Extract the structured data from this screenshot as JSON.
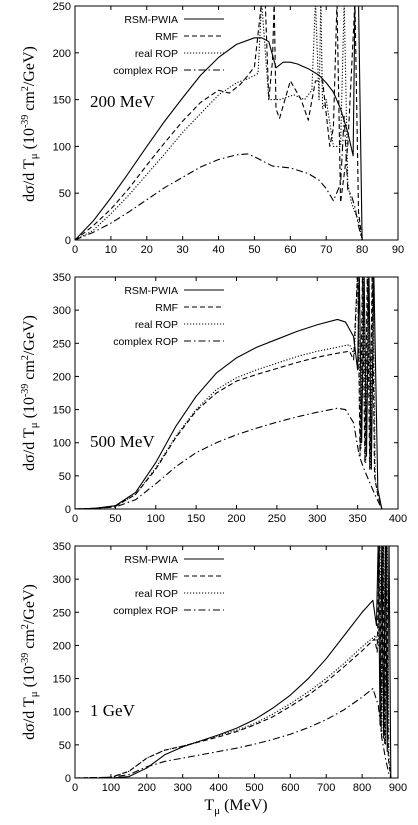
{
  "figure": {
    "x_axis_label": "T_μ (MeV)",
    "y_axis_label": "dσ/d T_μ (10^-39 cm^2/GeV)"
  },
  "styles": {
    "RSM-PWIA": {
      "color": "#000000",
      "dash": ""
    },
    "RMF": {
      "color": "#000000",
      "dash": "5,3"
    },
    "real ROP": {
      "color": "#000000",
      "dash": "1.2,1.8"
    },
    "complex ROP": {
      "color": "#000000",
      "dash": "7,3,1.5,3"
    }
  },
  "chart_data": [
    {
      "type": "line",
      "annotation": "200 MeV",
      "xlim": [
        0,
        90
      ],
      "ylim": [
        0,
        250
      ],
      "xticks": [
        0,
        10,
        20,
        30,
        40,
        50,
        60,
        70,
        80,
        90
      ],
      "yticks": [
        0,
        50,
        100,
        150,
        200,
        250
      ],
      "legend_position": "top-left",
      "series": [
        {
          "name": "RSM-PWIA",
          "x": [
            0,
            5,
            10,
            15,
            20,
            25,
            30,
            35,
            40,
            45,
            50,
            52,
            54,
            56,
            58,
            60,
            62,
            65,
            68,
            70,
            72,
            74,
            76,
            77.5,
            78,
            79,
            80
          ],
          "y": [
            0,
            20,
            45,
            72,
            100,
            127,
            152,
            176,
            195,
            209,
            216,
            216,
            212,
            184,
            190,
            190,
            188,
            183,
            176,
            168,
            158,
            140,
            115,
            90,
            255,
            255,
            0
          ]
        },
        {
          "name": "RMF",
          "x": [
            0,
            5,
            10,
            15,
            20,
            25,
            30,
            35,
            40,
            43,
            46,
            48,
            50,
            52,
            53,
            54,
            55,
            55.5,
            56,
            57,
            60,
            63,
            65,
            67,
            69,
            71,
            72,
            73,
            74,
            76,
            78,
            79,
            80
          ],
          "y": [
            0,
            15,
            33,
            55,
            80,
            104,
            127,
            147,
            160,
            157,
            166,
            175,
            185,
            255,
            255,
            150,
            190,
            255,
            140,
            130,
            170,
            150,
            128,
            170,
            170,
            100,
            120,
            255,
            40,
            100,
            255,
            30,
            0
          ]
        },
        {
          "name": "real ROP",
          "x": [
            0,
            5,
            10,
            15,
            20,
            25,
            30,
            35,
            40,
            45,
            48,
            51,
            52,
            54,
            57,
            61,
            64,
            66,
            67,
            68,
            68.5,
            69,
            70,
            72,
            74,
            75,
            76,
            77,
            79,
            80
          ],
          "y": [
            0,
            10,
            28,
            48,
            70,
            92,
            115,
            135,
            155,
            168,
            172,
            178,
            255,
            150,
            150,
            155,
            150,
            160,
            255,
            150,
            255,
            140,
            150,
            100,
            100,
            255,
            60,
            40,
            20,
            0
          ]
        },
        {
          "name": "complex ROP",
          "x": [
            0,
            5,
            10,
            15,
            20,
            25,
            30,
            35,
            40,
            45,
            48,
            50,
            52,
            55,
            60,
            65,
            68,
            70,
            72,
            74,
            75,
            76,
            77,
            78,
            79,
            80
          ],
          "y": [
            0,
            8,
            18,
            30,
            43,
            56,
            67,
            78,
            86,
            91,
            92,
            89,
            85,
            79,
            77,
            71,
            64,
            55,
            42,
            60,
            132,
            54,
            48,
            35,
            15,
            0
          ]
        }
      ]
    },
    {
      "type": "line",
      "annotation": "500 MeV",
      "xlim": [
        0,
        400
      ],
      "ylim": [
        0,
        350
      ],
      "xticks": [
        0,
        50,
        100,
        150,
        200,
        250,
        300,
        350,
        400
      ],
      "yticks": [
        0,
        50,
        100,
        150,
        200,
        250,
        300,
        350
      ],
      "legend_position": "top-left",
      "series": [
        {
          "name": "RSM-PWIA",
          "x": [
            0,
            25,
            50,
            75,
            100,
            125,
            150,
            175,
            200,
            225,
            250,
            275,
            300,
            325,
            335,
            345,
            350,
            352,
            355,
            358,
            361,
            364,
            367,
            370,
            375,
            380
          ],
          "y": [
            0,
            1,
            5,
            25,
            70,
            125,
            170,
            205,
            228,
            244,
            256,
            268,
            278,
            286,
            282,
            260,
            210,
            360,
            100,
            360,
            80,
            360,
            60,
            360,
            30,
            0
          ]
        },
        {
          "name": "RMF",
          "x": [
            0,
            25,
            50,
            75,
            100,
            125,
            150,
            175,
            200,
            225,
            250,
            275,
            300,
            325,
            340,
            345,
            350,
            353,
            356,
            359,
            362,
            365,
            368,
            371,
            375,
            380
          ],
          "y": [
            0,
            1,
            4,
            22,
            60,
            108,
            148,
            175,
            193,
            203,
            212,
            221,
            229,
            235,
            238,
            225,
            360,
            80,
            360,
            70,
            360,
            60,
            360,
            50,
            20,
            0
          ]
        },
        {
          "name": "real ROP",
          "x": [
            0,
            25,
            50,
            75,
            100,
            125,
            150,
            175,
            200,
            225,
            250,
            275,
            300,
            325,
            340,
            346,
            350,
            354,
            357,
            360,
            363,
            366,
            369,
            372,
            376,
            380
          ],
          "y": [
            0,
            1,
            4,
            22,
            62,
            110,
            150,
            180,
            198,
            210,
            220,
            230,
            238,
            244,
            248,
            232,
            360,
            90,
            360,
            70,
            360,
            60,
            360,
            40,
            20,
            0
          ]
        },
        {
          "name": "complex ROP",
          "x": [
            0,
            25,
            50,
            75,
            100,
            125,
            150,
            175,
            200,
            225,
            250,
            275,
            300,
            325,
            335,
            345,
            352,
            358,
            365,
            372,
            380
          ],
          "y": [
            0,
            1,
            3,
            14,
            38,
            64,
            85,
            100,
            112,
            122,
            131,
            139,
            146,
            152,
            150,
            130,
            80,
            60,
            40,
            20,
            0
          ]
        }
      ]
    },
    {
      "type": "line",
      "annotation": "1 GeV",
      "xlim": [
        0,
        900
      ],
      "ylim": [
        0,
        350
      ],
      "xticks": [
        0,
        100,
        200,
        300,
        400,
        500,
        600,
        700,
        800,
        900
      ],
      "yticks": [
        0,
        50,
        100,
        150,
        200,
        250,
        300,
        350
      ],
      "legend_position": "top-left",
      "series": [
        {
          "name": "RSM-PWIA",
          "x": [
            0,
            100,
            150,
            200,
            250,
            300,
            350,
            400,
            450,
            500,
            550,
            600,
            650,
            700,
            750,
            800,
            830,
            840,
            845,
            850,
            855,
            860,
            865,
            870,
            875,
            880
          ],
          "y": [
            0,
            0,
            2,
            15,
            35,
            47,
            56,
            65,
            75,
            88,
            105,
            125,
            150,
            180,
            215,
            250,
            268,
            230,
            360,
            80,
            360,
            60,
            360,
            40,
            360,
            0
          ]
        },
        {
          "name": "RMF",
          "x": [
            0,
            100,
            150,
            200,
            250,
            300,
            350,
            400,
            450,
            500,
            550,
            600,
            650,
            700,
            750,
            800,
            835,
            842,
            848,
            853,
            858,
            863,
            868,
            873,
            880
          ],
          "y": [
            0,
            1,
            10,
            30,
            42,
            48,
            55,
            62,
            70,
            80,
            92,
            108,
            125,
            145,
            168,
            192,
            210,
            190,
            360,
            70,
            360,
            50,
            360,
            30,
            0
          ]
        },
        {
          "name": "real ROP",
          "x": [
            0,
            100,
            150,
            200,
            250,
            300,
            350,
            400,
            450,
            500,
            550,
            600,
            650,
            700,
            750,
            800,
            838,
            845,
            850,
            855,
            860,
            865,
            870,
            875,
            880
          ],
          "y": [
            0,
            1,
            10,
            30,
            42,
            48,
            56,
            64,
            72,
            82,
            96,
            112,
            130,
            150,
            173,
            198,
            215,
            200,
            360,
            60,
            360,
            50,
            360,
            30,
            0
          ]
        },
        {
          "name": "complex ROP",
          "x": [
            0,
            100,
            150,
            200,
            250,
            300,
            350,
            400,
            450,
            500,
            550,
            600,
            650,
            700,
            750,
            800,
            830,
            845,
            855,
            865,
            875,
            880
          ],
          "y": [
            0,
            1,
            5,
            17,
            25,
            30,
            35,
            40,
            45,
            51,
            58,
            66,
            76,
            88,
            103,
            122,
            135,
            110,
            60,
            30,
            5,
            0
          ]
        }
      ]
    }
  ]
}
